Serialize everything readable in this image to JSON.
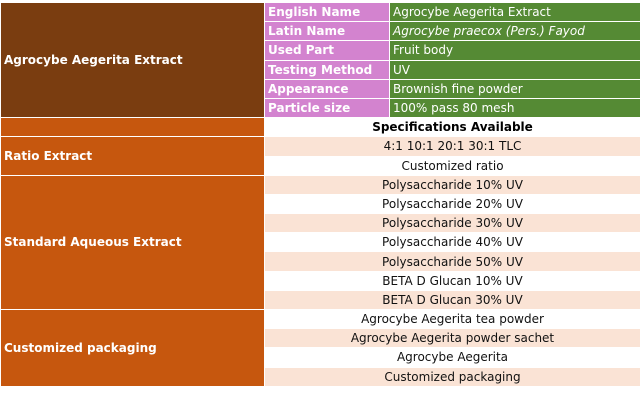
{
  "product": {
    "title": "Agrocybe Aegerita Extract",
    "attributes": [
      {
        "label": "English Name",
        "value": "Agrocybe Aegerita Extract",
        "italic": false
      },
      {
        "label": "Latin Name",
        "value": "Agrocybe praecox (Pers.) Fayod",
        "italic": true
      },
      {
        "label": "Used Part",
        "value": "Fruit body",
        "italic": false
      },
      {
        "label": "Testing Method",
        "value": "UV",
        "italic": false
      },
      {
        "label": "Appearance",
        "value": "Brownish fine powder",
        "italic": false
      },
      {
        "label": "Particle size",
        "value": "100% pass 80 mesh",
        "italic": false
      }
    ]
  },
  "specifications_heading": "Specifications Available",
  "groups": [
    {
      "name": "Ratio Extract",
      "items": [
        "4:1 10:1 20:1 30:1 TLC",
        "Customized ratio"
      ]
    },
    {
      "name": "Standard Aqueous Extract",
      "items": [
        "Polysaccharide 10% UV",
        "Polysaccharide 20% UV",
        "Polysaccharide 30% UV",
        "Polysaccharide 40% UV",
        "Polysaccharide 50% UV",
        "BETA D Glucan 10% UV",
        "BETA D Glucan 30% UV"
      ]
    },
    {
      "name": "Customized packaging",
      "items": [
        "Agrocybe Aegerita tea powder",
        "Agrocybe Aegerita powder sachet",
        "Agrocybe Aegerita",
        "Customized packaging"
      ]
    }
  ],
  "colors": {
    "title_bg": "#7a3d10",
    "label_bg": "#d383cf",
    "value_bg": "#558a34",
    "group_bg": "#c6570e",
    "stripe_bg": "#fae3d5"
  }
}
